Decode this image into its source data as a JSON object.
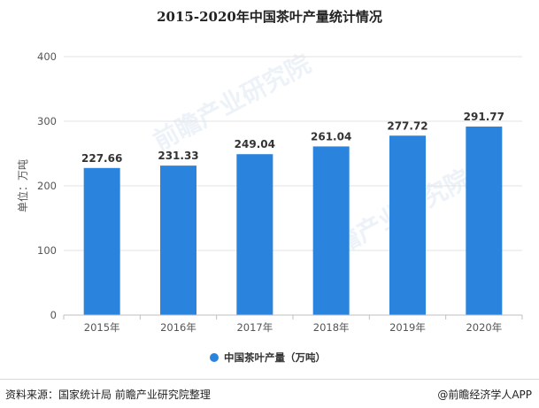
{
  "title": "2015-2020年中国茶叶产量统计情况",
  "footer": {
    "source": "资料来源：国家统计局 前瞻产业研究院整理",
    "brand": "@前瞻经济学人APP"
  },
  "watermark": {
    "text": "前瞻产业研究院"
  },
  "chart_data": {
    "type": "bar",
    "categories": [
      "2015年",
      "2016年",
      "2017年",
      "2018年",
      "2019年",
      "2020年"
    ],
    "series": [
      {
        "name": "中国茶叶产量（万吨）",
        "values": [
          227.66,
          231.33,
          249.04,
          261.04,
          277.72,
          291.77
        ]
      }
    ],
    "value_labels": [
      "227.66",
      "231.33",
      "249.04",
      "261.04",
      "277.72",
      "291.77"
    ],
    "ylabel": "单位：万吨",
    "ylim": [
      0,
      400
    ],
    "yticks": [
      0,
      100,
      200,
      300,
      400
    ],
    "grid": true,
    "legend": "bottom",
    "colors": {
      "bar": "#2a84de",
      "grid": "#e3e3e3",
      "axis": "#bfbfbf",
      "text": "#555555"
    }
  }
}
